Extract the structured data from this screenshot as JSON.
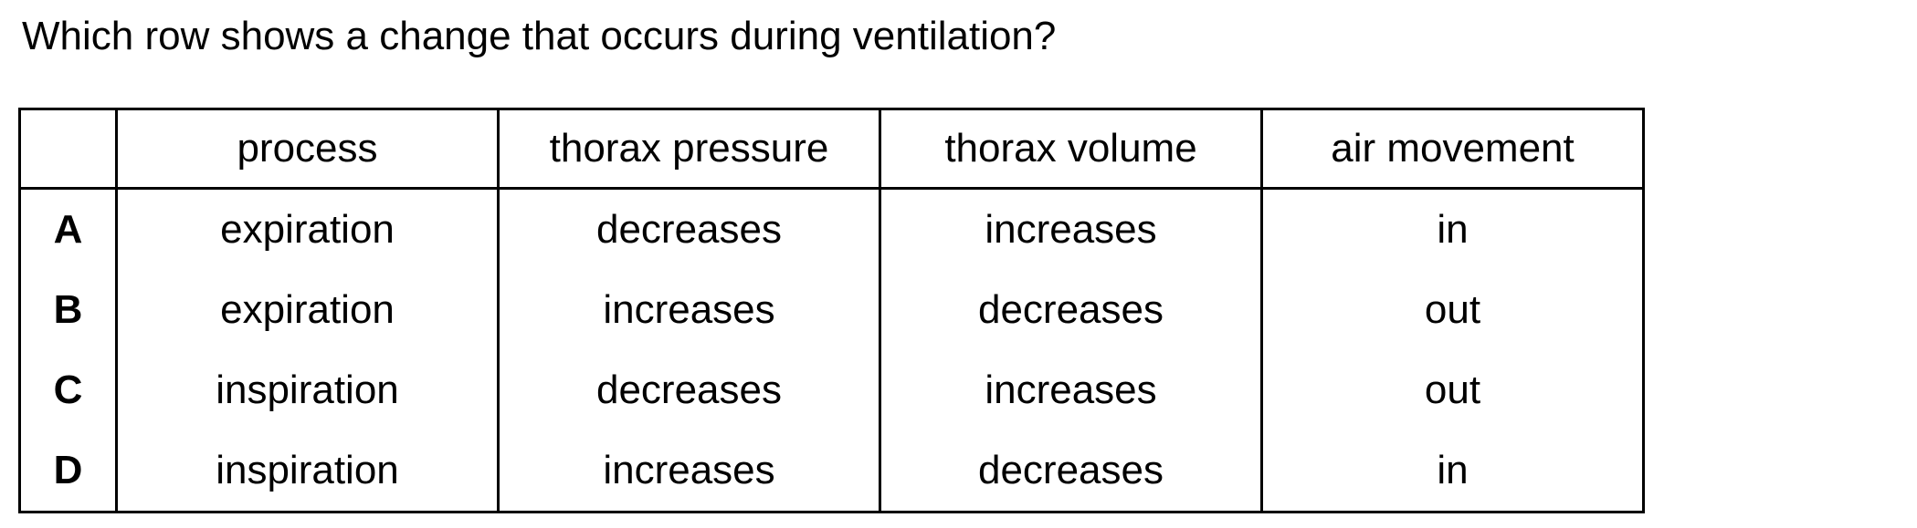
{
  "question": "Which row shows a change that occurs during ventilation?",
  "table": {
    "headers": [
      "",
      "process",
      "thorax pressure",
      "thorax volume",
      "air movement"
    ],
    "rows": [
      {
        "letter": "A",
        "process": "expiration",
        "thorax_pressure": "decreases",
        "thorax_volume": "increases",
        "air_movement": "in"
      },
      {
        "letter": "B",
        "process": "expiration",
        "thorax_pressure": "increases",
        "thorax_volume": "decreases",
        "air_movement": "out"
      },
      {
        "letter": "C",
        "process": "inspiration",
        "thorax_pressure": "decreases",
        "thorax_volume": "increases",
        "air_movement": "out"
      },
      {
        "letter": "D",
        "process": "inspiration",
        "thorax_pressure": "increases",
        "thorax_volume": "decreases",
        "air_movement": "in"
      }
    ]
  }
}
